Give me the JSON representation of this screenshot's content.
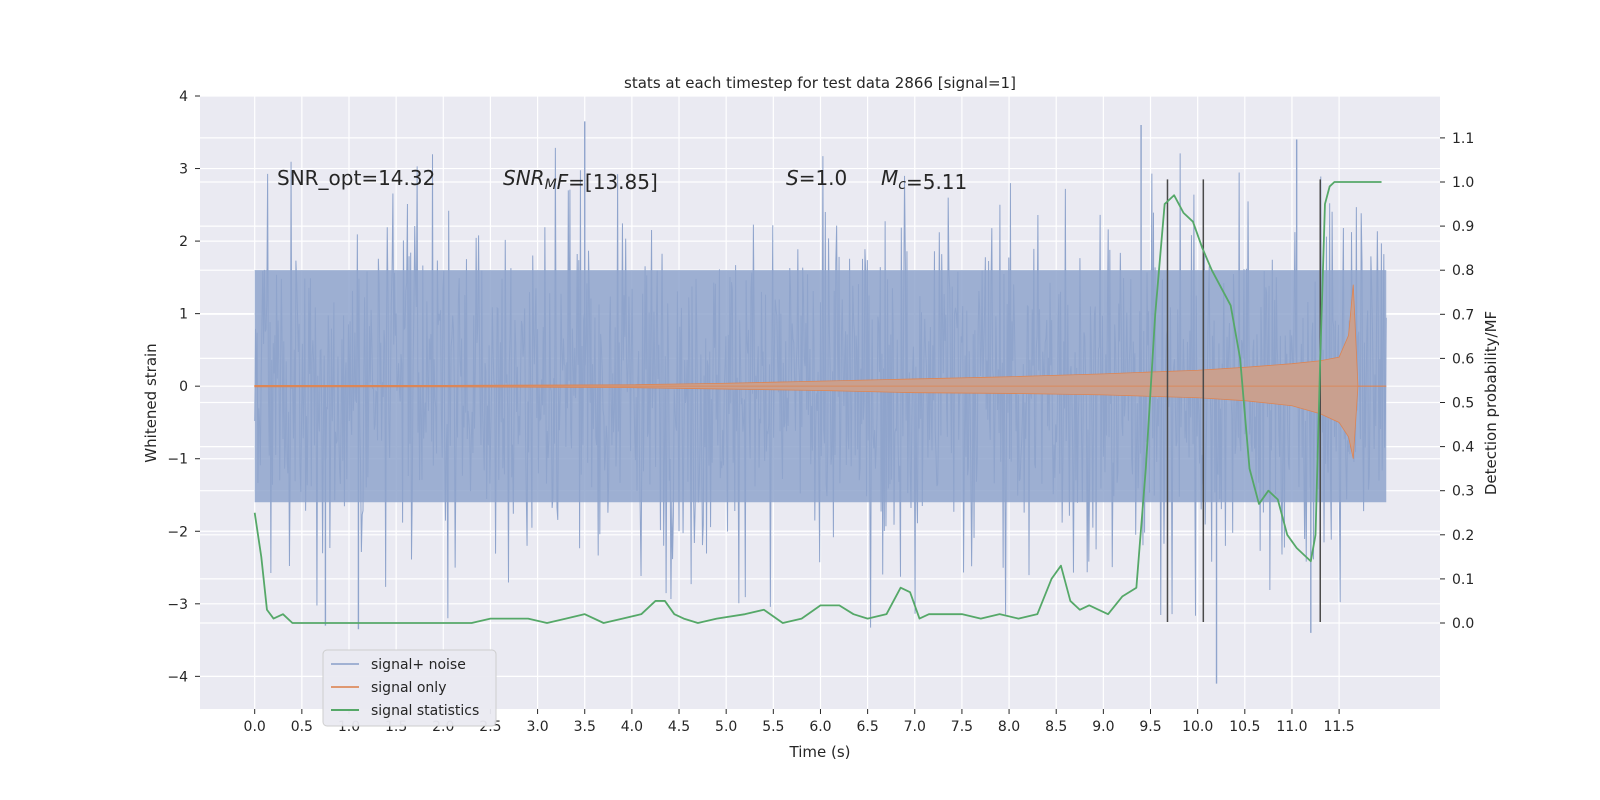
{
  "chart_data": {
    "type": "line",
    "title": "stats at each timestep for test data 2866 [signal=1]",
    "xlabel": "Time (s)",
    "ylabel": "Whitened strain",
    "y2label": "Detection probability/MF",
    "xlim": [
      -0.58,
      12.57
    ],
    "ylim": [
      -4.45,
      4.0
    ],
    "y2lim": [
      -0.195,
      1.195
    ],
    "x_ticks": [
      "0.0",
      "0.5",
      "1.0",
      "1.5",
      "2.0",
      "2.5",
      "3.0",
      "3.5",
      "4.0",
      "4.5",
      "5.0",
      "5.5",
      "6.0",
      "6.5",
      "7.0",
      "7.5",
      "8.0",
      "8.5",
      "9.0",
      "9.5",
      "10.0",
      "10.5",
      "11.0",
      "11.5"
    ],
    "y_ticks": [
      "4",
      "3",
      "2",
      "1",
      "0",
      "−1",
      "−2",
      "−3",
      "−4"
    ],
    "y2_ticks": [
      "1.1",
      "1.0",
      "0.9",
      "0.8",
      "0.7",
      "0.6",
      "0.5",
      "0.4",
      "0.3",
      "0.2",
      "0.1",
      "0.0"
    ],
    "grid": true,
    "legend_position": "lower-left",
    "annotations": [
      {
        "parts": [
          {
            "t": "SNR_opt=14.32",
            "style": "normal"
          }
        ]
      },
      {
        "parts": [
          {
            "t": "SNR",
            "style": "italic"
          },
          {
            "t": "M",
            "style": "italic-sub"
          },
          {
            "t": "F",
            "style": "italic"
          },
          {
            "t": "=[13.85]",
            "style": "normal"
          }
        ]
      },
      {
        "parts": [
          {
            "t": "S",
            "style": "italic"
          },
          {
            "t": "=1.0",
            "style": "normal"
          }
        ]
      },
      {
        "parts": [
          {
            "t": "M",
            "style": "italic"
          },
          {
            "t": "c",
            "style": "italic-sub"
          },
          {
            "t": "=5.11",
            "style": "normal"
          }
        ]
      }
    ],
    "vertical_lines_x": [
      9.68,
      10.06,
      11.3
    ],
    "vertical_lines_y_range": [
      -3.25,
      2.85
    ],
    "series": [
      {
        "name": "signal+ noise",
        "color": "#8fa4cc",
        "x_range": [
          0.0,
          12.0
        ],
        "envelope": {
          "typical_peak": 2.0,
          "spike_max": 3.65,
          "spike_min": -4.1
        }
      },
      {
        "name": "signal only",
        "color": "#dd8452",
        "fill_color": "#c9a08f",
        "chirp_amplitude": {
          "x": [
            0.0,
            2.0,
            4.0,
            5.0,
            6.0,
            7.0,
            8.0,
            9.0,
            10.0,
            10.5,
            11.0,
            11.3,
            11.5,
            11.6,
            11.65,
            11.7,
            12.0
          ],
          "upper": [
            0.01,
            0.01,
            0.02,
            0.04,
            0.07,
            0.1,
            0.13,
            0.17,
            0.22,
            0.26,
            0.31,
            0.35,
            0.4,
            0.7,
            1.4,
            0.0,
            0.0
          ],
          "lower": [
            -0.01,
            -0.01,
            -0.02,
            -0.04,
            -0.06,
            -0.09,
            -0.1,
            -0.12,
            -0.16,
            -0.2,
            -0.27,
            -0.38,
            -0.5,
            -0.7,
            -1.0,
            0.0,
            0.0
          ]
        }
      },
      {
        "name": "signal statistics",
        "color": "#55a868",
        "axis": "right",
        "x": [
          0.0,
          0.07,
          0.13,
          0.2,
          0.3,
          0.4,
          0.5,
          0.6,
          0.8,
          1.0,
          1.2,
          1.5,
          1.8,
          2.0,
          2.3,
          2.5,
          2.7,
          2.9,
          3.1,
          3.3,
          3.5,
          3.7,
          3.9,
          4.1,
          4.25,
          4.35,
          4.45,
          4.55,
          4.7,
          4.9,
          5.2,
          5.4,
          5.6,
          5.8,
          6.0,
          6.2,
          6.35,
          6.5,
          6.7,
          6.85,
          6.95,
          7.05,
          7.15,
          7.3,
          7.5,
          7.7,
          7.9,
          8.1,
          8.3,
          8.45,
          8.55,
          8.65,
          8.75,
          8.85,
          8.95,
          9.05,
          9.2,
          9.35,
          9.45,
          9.55,
          9.65,
          9.75,
          9.85,
          9.95,
          10.05,
          10.15,
          10.25,
          10.35,
          10.45,
          10.55,
          10.65,
          10.75,
          10.85,
          10.95,
          11.05,
          11.15,
          11.2,
          11.25,
          11.3,
          11.35,
          11.4,
          11.45,
          11.5,
          11.6,
          11.8,
          11.95
        ],
        "y": [
          0.25,
          0.15,
          0.03,
          0.01,
          0.02,
          0.0,
          0.0,
          0.0,
          0.0,
          0.0,
          0.0,
          0.0,
          0.0,
          0.0,
          0.0,
          0.01,
          0.01,
          0.01,
          0.0,
          0.01,
          0.02,
          0.0,
          0.01,
          0.02,
          0.05,
          0.05,
          0.02,
          0.01,
          0.0,
          0.01,
          0.02,
          0.03,
          0.0,
          0.01,
          0.04,
          0.04,
          0.02,
          0.01,
          0.02,
          0.08,
          0.07,
          0.01,
          0.02,
          0.02,
          0.02,
          0.01,
          0.02,
          0.01,
          0.02,
          0.1,
          0.13,
          0.05,
          0.03,
          0.04,
          0.03,
          0.02,
          0.06,
          0.08,
          0.35,
          0.7,
          0.95,
          0.97,
          0.93,
          0.91,
          0.85,
          0.8,
          0.76,
          0.72,
          0.6,
          0.35,
          0.27,
          0.3,
          0.28,
          0.2,
          0.17,
          0.15,
          0.14,
          0.2,
          0.6,
          0.95,
          0.99,
          1.0,
          1.0,
          1.0,
          1.0,
          1.0
        ]
      }
    ]
  }
}
